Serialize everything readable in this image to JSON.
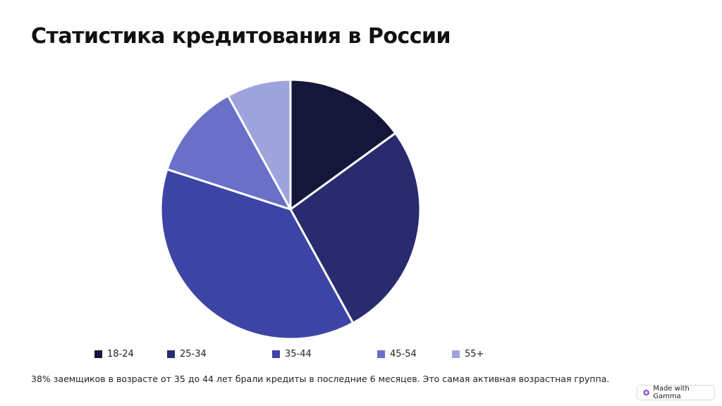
{
  "title": "Статистика кредитования в России",
  "caption": "38% заемщиков в возрасте от 35 до 44 лет брали кредиты в последние 6 месяцев. Это самая активная возрастная группа.",
  "badge": {
    "label": "Made with Gamma",
    "icon": "gamma-logo-icon"
  },
  "colors": {
    "18-24": "#15173a",
    "25-34": "#292b6e",
    "35-44": "#3d44a5",
    "45-54": "#6a6fc7",
    "55+": "#9fa3dd",
    "slice_border": "#ffffff"
  },
  "chart_data": {
    "type": "pie",
    "title": "",
    "categories": [
      "18-24",
      "25-34",
      "35-44",
      "45-54",
      "55+"
    ],
    "values": [
      15,
      27,
      38,
      12,
      8
    ],
    "legend": "bottom"
  }
}
